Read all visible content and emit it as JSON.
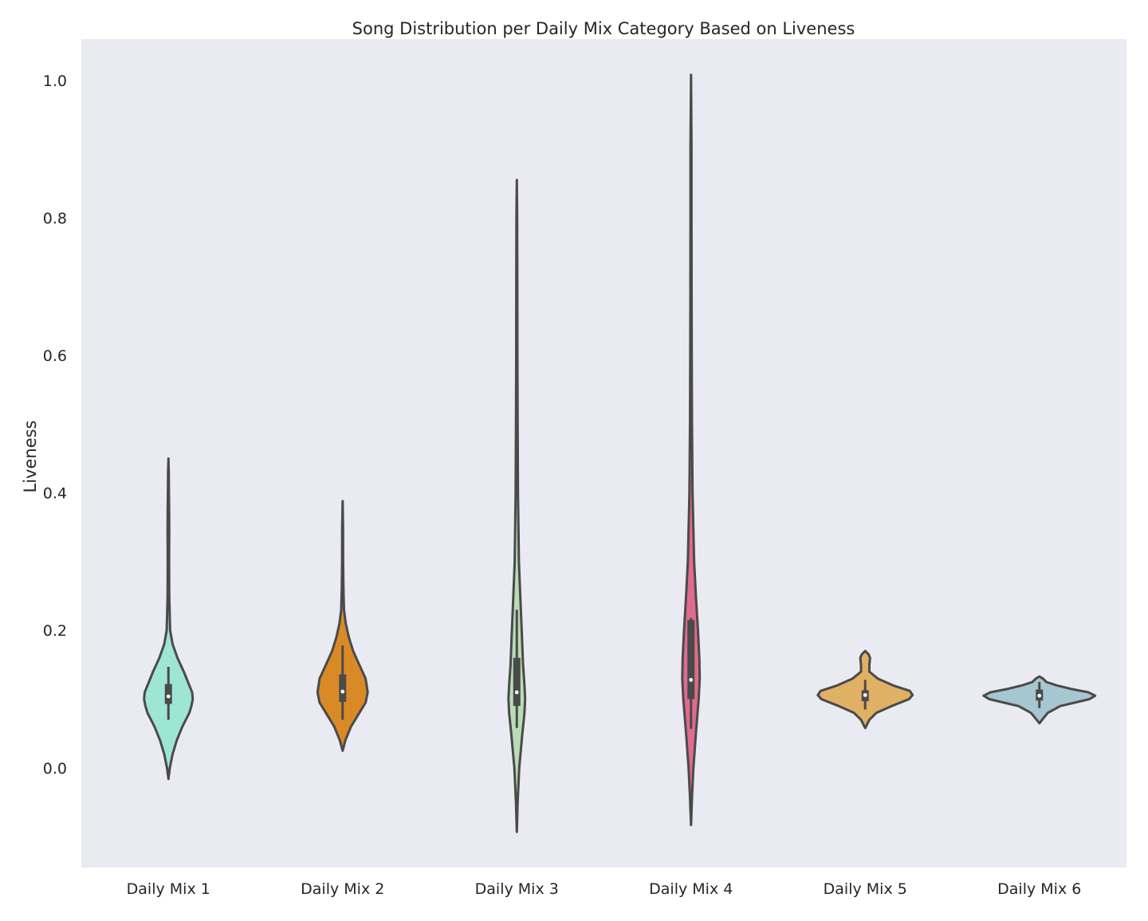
{
  "chart_data": {
    "type": "violin",
    "title": "Song Distribution per Daily Mix Category Based on Liveness",
    "xlabel": "",
    "ylabel": "Liveness",
    "ylim": [
      -0.145,
      1.06
    ],
    "yticks": [
      0.0,
      0.2,
      0.4,
      0.6,
      0.8,
      1.0
    ],
    "ytick_labels": [
      "0.0",
      "0.2",
      "0.4",
      "0.6",
      "0.8",
      "1.0"
    ],
    "grid": false,
    "background": "#eaeaf2",
    "line_color": "#4a4a4a",
    "categories": [
      "Daily Mix 1",
      "Daily Mix 2",
      "Daily Mix 3",
      "Daily Mix 4",
      "Daily Mix 5",
      "Daily Mix 6"
    ],
    "violins": [
      {
        "category": "Daily Mix 1",
        "color": "#9de6d5",
        "min": 0.07,
        "q1": 0.093,
        "median": 0.104,
        "q3": 0.122,
        "max": 0.147,
        "profile": [
          [
            -0.016,
            0.0
          ],
          [
            0.0,
            0.02
          ],
          [
            0.02,
            0.06
          ],
          [
            0.04,
            0.12
          ],
          [
            0.06,
            0.2
          ],
          [
            0.08,
            0.3
          ],
          [
            0.09,
            0.33
          ],
          [
            0.1,
            0.35
          ],
          [
            0.11,
            0.34
          ],
          [
            0.12,
            0.3
          ],
          [
            0.14,
            0.22
          ],
          [
            0.16,
            0.13
          ],
          [
            0.18,
            0.06
          ],
          [
            0.2,
            0.025
          ],
          [
            0.25,
            0.012
          ],
          [
            0.3,
            0.01
          ],
          [
            0.34,
            0.012
          ],
          [
            0.37,
            0.011
          ],
          [
            0.4,
            0.008
          ],
          [
            0.43,
            0.005
          ],
          [
            0.45,
            0.0
          ]
        ]
      },
      {
        "category": "Daily Mix 2",
        "color": "#d98a27",
        "min": 0.07,
        "q1": 0.096,
        "median": 0.111,
        "q3": 0.136,
        "max": 0.178,
        "profile": [
          [
            0.025,
            0.0
          ],
          [
            0.04,
            0.04
          ],
          [
            0.06,
            0.12
          ],
          [
            0.08,
            0.24
          ],
          [
            0.095,
            0.33
          ],
          [
            0.11,
            0.36
          ],
          [
            0.13,
            0.33
          ],
          [
            0.15,
            0.24
          ],
          [
            0.17,
            0.15
          ],
          [
            0.19,
            0.09
          ],
          [
            0.21,
            0.045
          ],
          [
            0.23,
            0.02
          ],
          [
            0.26,
            0.012
          ],
          [
            0.3,
            0.008
          ],
          [
            0.35,
            0.006
          ],
          [
            0.388,
            0.0
          ]
        ]
      },
      {
        "category": "Daily Mix 3",
        "color": "#b9dcb4",
        "min": 0.058,
        "q1": 0.09,
        "median": 0.11,
        "q3": 0.16,
        "max": 0.23,
        "profile": [
          [
            -0.093,
            0.0
          ],
          [
            -0.05,
            0.012
          ],
          [
            0.0,
            0.035
          ],
          [
            0.05,
            0.08
          ],
          [
            0.08,
            0.11
          ],
          [
            0.1,
            0.12
          ],
          [
            0.12,
            0.11
          ],
          [
            0.15,
            0.09
          ],
          [
            0.2,
            0.07
          ],
          [
            0.25,
            0.05
          ],
          [
            0.3,
            0.03
          ],
          [
            0.4,
            0.017
          ],
          [
            0.5,
            0.012
          ],
          [
            0.6,
            0.009
          ],
          [
            0.7,
            0.007
          ],
          [
            0.8,
            0.005
          ],
          [
            0.855,
            0.0
          ]
        ]
      },
      {
        "category": "Daily Mix 4",
        "color": "#e06b8e",
        "min": 0.057,
        "q1": 0.1,
        "median": 0.128,
        "q3": 0.215,
        "max": 0.218,
        "profile": [
          [
            -0.083,
            0.0
          ],
          [
            -0.04,
            0.015
          ],
          [
            0.0,
            0.035
          ],
          [
            0.05,
            0.07
          ],
          [
            0.1,
            0.11
          ],
          [
            0.13,
            0.125
          ],
          [
            0.16,
            0.12
          ],
          [
            0.2,
            0.1
          ],
          [
            0.25,
            0.07
          ],
          [
            0.3,
            0.045
          ],
          [
            0.4,
            0.022
          ],
          [
            0.5,
            0.014
          ],
          [
            0.6,
            0.011
          ],
          [
            0.7,
            0.009
          ],
          [
            0.8,
            0.008
          ],
          [
            0.9,
            0.007
          ],
          [
            1.008,
            0.0
          ]
        ]
      },
      {
        "category": "Daily Mix 5",
        "color": "#e0b064",
        "min": 0.085,
        "q1": 0.097,
        "median": 0.106,
        "q3": 0.113,
        "max": 0.128,
        "profile": [
          [
            0.058,
            0.0
          ],
          [
            0.07,
            0.06
          ],
          [
            0.08,
            0.16
          ],
          [
            0.09,
            0.38
          ],
          [
            0.1,
            0.63
          ],
          [
            0.106,
            0.68
          ],
          [
            0.112,
            0.64
          ],
          [
            0.12,
            0.4
          ],
          [
            0.13,
            0.18
          ],
          [
            0.14,
            0.06
          ],
          [
            0.15,
            0.06
          ],
          [
            0.16,
            0.07
          ],
          [
            0.165,
            0.05
          ],
          [
            0.17,
            0.0
          ]
        ]
      },
      {
        "category": "Daily Mix 6",
        "color": "#a6c6d1",
        "min": 0.087,
        "q1": 0.098,
        "median": 0.105,
        "q3": 0.114,
        "max": 0.125,
        "profile": [
          [
            0.065,
            0.0
          ],
          [
            0.07,
            0.04
          ],
          [
            0.08,
            0.12
          ],
          [
            0.09,
            0.3
          ],
          [
            0.1,
            0.72
          ],
          [
            0.105,
            0.8
          ],
          [
            0.11,
            0.7
          ],
          [
            0.115,
            0.45
          ],
          [
            0.12,
            0.25
          ],
          [
            0.125,
            0.1
          ],
          [
            0.13,
            0.05
          ],
          [
            0.133,
            0.0
          ]
        ]
      }
    ]
  }
}
